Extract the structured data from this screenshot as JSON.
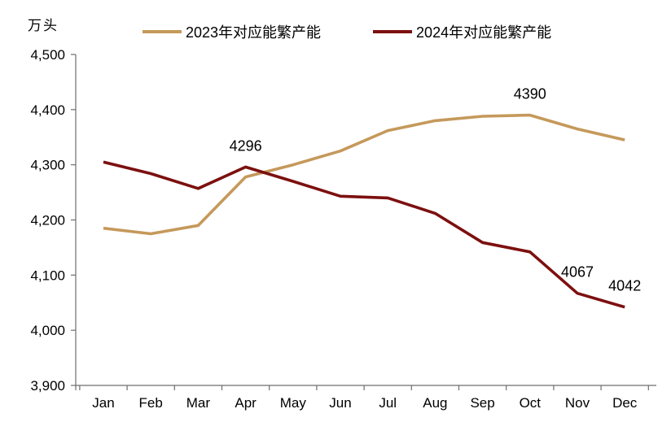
{
  "unit_label": "万头",
  "legend": [
    {
      "label": "2023年对应能繁产能",
      "color": "#C5995B"
    },
    {
      "label": "2024年对应能繁产能",
      "color": "#7C100F"
    }
  ],
  "chart_data": {
    "type": "line",
    "title": "",
    "xlabel": "",
    "ylabel": "万头",
    "categories": [
      "Jan",
      "Feb",
      "Mar",
      "Apr",
      "May",
      "Jun",
      "Jul",
      "Aug",
      "Sep",
      "Oct",
      "Nov",
      "Dec"
    ],
    "series": [
      {
        "name": "2023年对应能繁产能",
        "color": "#C5995B",
        "values": [
          4185,
          4175,
          4190,
          4278,
          4300,
          4325,
          4362,
          4380,
          4388,
          4390,
          4365,
          4345
        ]
      },
      {
        "name": "2024年对应能繁产能",
        "color": "#7C100F",
        "values": [
          4305,
          4284,
          4257,
          4296,
          4270,
          4243,
          4240,
          4212,
          4159,
          4142,
          4067,
          4042
        ]
      }
    ],
    "ylim": [
      3900,
      4500
    ],
    "ytick_step": 100,
    "ytick_labels": [
      "4,500",
      "4,400",
      "4,300",
      "4,200",
      "4,100",
      "4,000",
      "3,900"
    ],
    "grid": false,
    "legend_position": "top-center",
    "annotations": [
      {
        "series": 1,
        "category": "Apr",
        "text": "4296"
      },
      {
        "series": 0,
        "category": "Oct",
        "text": "4390"
      },
      {
        "series": 1,
        "category": "Nov",
        "text": "4067"
      },
      {
        "series": 1,
        "category": "Dec",
        "text": "4042"
      }
    ]
  }
}
